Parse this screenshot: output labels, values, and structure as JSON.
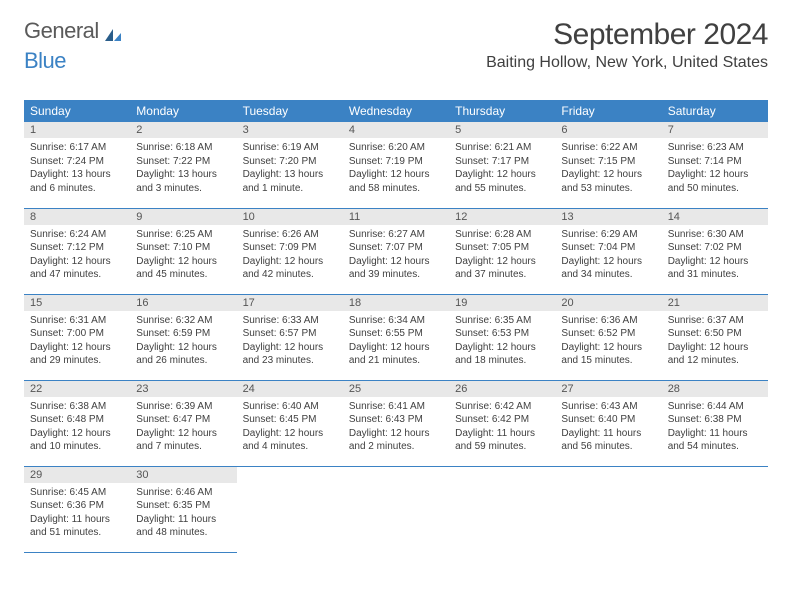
{
  "logo": {
    "word1": "General",
    "word2": "Blue"
  },
  "header": {
    "month_title": "September 2024",
    "location": "Baiting Hollow, New York, United States"
  },
  "style": {
    "header_bg": "#3b82c4",
    "header_fg": "#ffffff",
    "daynum_bg": "#e8e8e8",
    "daynum_fg": "#555555",
    "body_fg": "#404040",
    "row_border": "#3b82c4",
    "page_bg": "#ffffff",
    "month_title_size": 30,
    "location_size": 16,
    "day_header_size": 12,
    "daynum_size": 11,
    "cell_body_size": 10
  },
  "day_names": [
    "Sunday",
    "Monday",
    "Tuesday",
    "Wednesday",
    "Thursday",
    "Friday",
    "Saturday"
  ],
  "weeks": [
    [
      {
        "n": "1",
        "sr": "Sunrise: 6:17 AM",
        "ss": "Sunset: 7:24 PM",
        "dl": "Daylight: 13 hours and 6 minutes."
      },
      {
        "n": "2",
        "sr": "Sunrise: 6:18 AM",
        "ss": "Sunset: 7:22 PM",
        "dl": "Daylight: 13 hours and 3 minutes."
      },
      {
        "n": "3",
        "sr": "Sunrise: 6:19 AM",
        "ss": "Sunset: 7:20 PM",
        "dl": "Daylight: 13 hours and 1 minute."
      },
      {
        "n": "4",
        "sr": "Sunrise: 6:20 AM",
        "ss": "Sunset: 7:19 PM",
        "dl": "Daylight: 12 hours and 58 minutes."
      },
      {
        "n": "5",
        "sr": "Sunrise: 6:21 AM",
        "ss": "Sunset: 7:17 PM",
        "dl": "Daylight: 12 hours and 55 minutes."
      },
      {
        "n": "6",
        "sr": "Sunrise: 6:22 AM",
        "ss": "Sunset: 7:15 PM",
        "dl": "Daylight: 12 hours and 53 minutes."
      },
      {
        "n": "7",
        "sr": "Sunrise: 6:23 AM",
        "ss": "Sunset: 7:14 PM",
        "dl": "Daylight: 12 hours and 50 minutes."
      }
    ],
    [
      {
        "n": "8",
        "sr": "Sunrise: 6:24 AM",
        "ss": "Sunset: 7:12 PM",
        "dl": "Daylight: 12 hours and 47 minutes."
      },
      {
        "n": "9",
        "sr": "Sunrise: 6:25 AM",
        "ss": "Sunset: 7:10 PM",
        "dl": "Daylight: 12 hours and 45 minutes."
      },
      {
        "n": "10",
        "sr": "Sunrise: 6:26 AM",
        "ss": "Sunset: 7:09 PM",
        "dl": "Daylight: 12 hours and 42 minutes."
      },
      {
        "n": "11",
        "sr": "Sunrise: 6:27 AM",
        "ss": "Sunset: 7:07 PM",
        "dl": "Daylight: 12 hours and 39 minutes."
      },
      {
        "n": "12",
        "sr": "Sunrise: 6:28 AM",
        "ss": "Sunset: 7:05 PM",
        "dl": "Daylight: 12 hours and 37 minutes."
      },
      {
        "n": "13",
        "sr": "Sunrise: 6:29 AM",
        "ss": "Sunset: 7:04 PM",
        "dl": "Daylight: 12 hours and 34 minutes."
      },
      {
        "n": "14",
        "sr": "Sunrise: 6:30 AM",
        "ss": "Sunset: 7:02 PM",
        "dl": "Daylight: 12 hours and 31 minutes."
      }
    ],
    [
      {
        "n": "15",
        "sr": "Sunrise: 6:31 AM",
        "ss": "Sunset: 7:00 PM",
        "dl": "Daylight: 12 hours and 29 minutes."
      },
      {
        "n": "16",
        "sr": "Sunrise: 6:32 AM",
        "ss": "Sunset: 6:59 PM",
        "dl": "Daylight: 12 hours and 26 minutes."
      },
      {
        "n": "17",
        "sr": "Sunrise: 6:33 AM",
        "ss": "Sunset: 6:57 PM",
        "dl": "Daylight: 12 hours and 23 minutes."
      },
      {
        "n": "18",
        "sr": "Sunrise: 6:34 AM",
        "ss": "Sunset: 6:55 PM",
        "dl": "Daylight: 12 hours and 21 minutes."
      },
      {
        "n": "19",
        "sr": "Sunrise: 6:35 AM",
        "ss": "Sunset: 6:53 PM",
        "dl": "Daylight: 12 hours and 18 minutes."
      },
      {
        "n": "20",
        "sr": "Sunrise: 6:36 AM",
        "ss": "Sunset: 6:52 PM",
        "dl": "Daylight: 12 hours and 15 minutes."
      },
      {
        "n": "21",
        "sr": "Sunrise: 6:37 AM",
        "ss": "Sunset: 6:50 PM",
        "dl": "Daylight: 12 hours and 12 minutes."
      }
    ],
    [
      {
        "n": "22",
        "sr": "Sunrise: 6:38 AM",
        "ss": "Sunset: 6:48 PM",
        "dl": "Daylight: 12 hours and 10 minutes."
      },
      {
        "n": "23",
        "sr": "Sunrise: 6:39 AM",
        "ss": "Sunset: 6:47 PM",
        "dl": "Daylight: 12 hours and 7 minutes."
      },
      {
        "n": "24",
        "sr": "Sunrise: 6:40 AM",
        "ss": "Sunset: 6:45 PM",
        "dl": "Daylight: 12 hours and 4 minutes."
      },
      {
        "n": "25",
        "sr": "Sunrise: 6:41 AM",
        "ss": "Sunset: 6:43 PM",
        "dl": "Daylight: 12 hours and 2 minutes."
      },
      {
        "n": "26",
        "sr": "Sunrise: 6:42 AM",
        "ss": "Sunset: 6:42 PM",
        "dl": "Daylight: 11 hours and 59 minutes."
      },
      {
        "n": "27",
        "sr": "Sunrise: 6:43 AM",
        "ss": "Sunset: 6:40 PM",
        "dl": "Daylight: 11 hours and 56 minutes."
      },
      {
        "n": "28",
        "sr": "Sunrise: 6:44 AM",
        "ss": "Sunset: 6:38 PM",
        "dl": "Daylight: 11 hours and 54 minutes."
      }
    ],
    [
      {
        "n": "29",
        "sr": "Sunrise: 6:45 AM",
        "ss": "Sunset: 6:36 PM",
        "dl": "Daylight: 11 hours and 51 minutes."
      },
      {
        "n": "30",
        "sr": "Sunrise: 6:46 AM",
        "ss": "Sunset: 6:35 PM",
        "dl": "Daylight: 11 hours and 48 minutes."
      },
      null,
      null,
      null,
      null,
      null
    ]
  ]
}
